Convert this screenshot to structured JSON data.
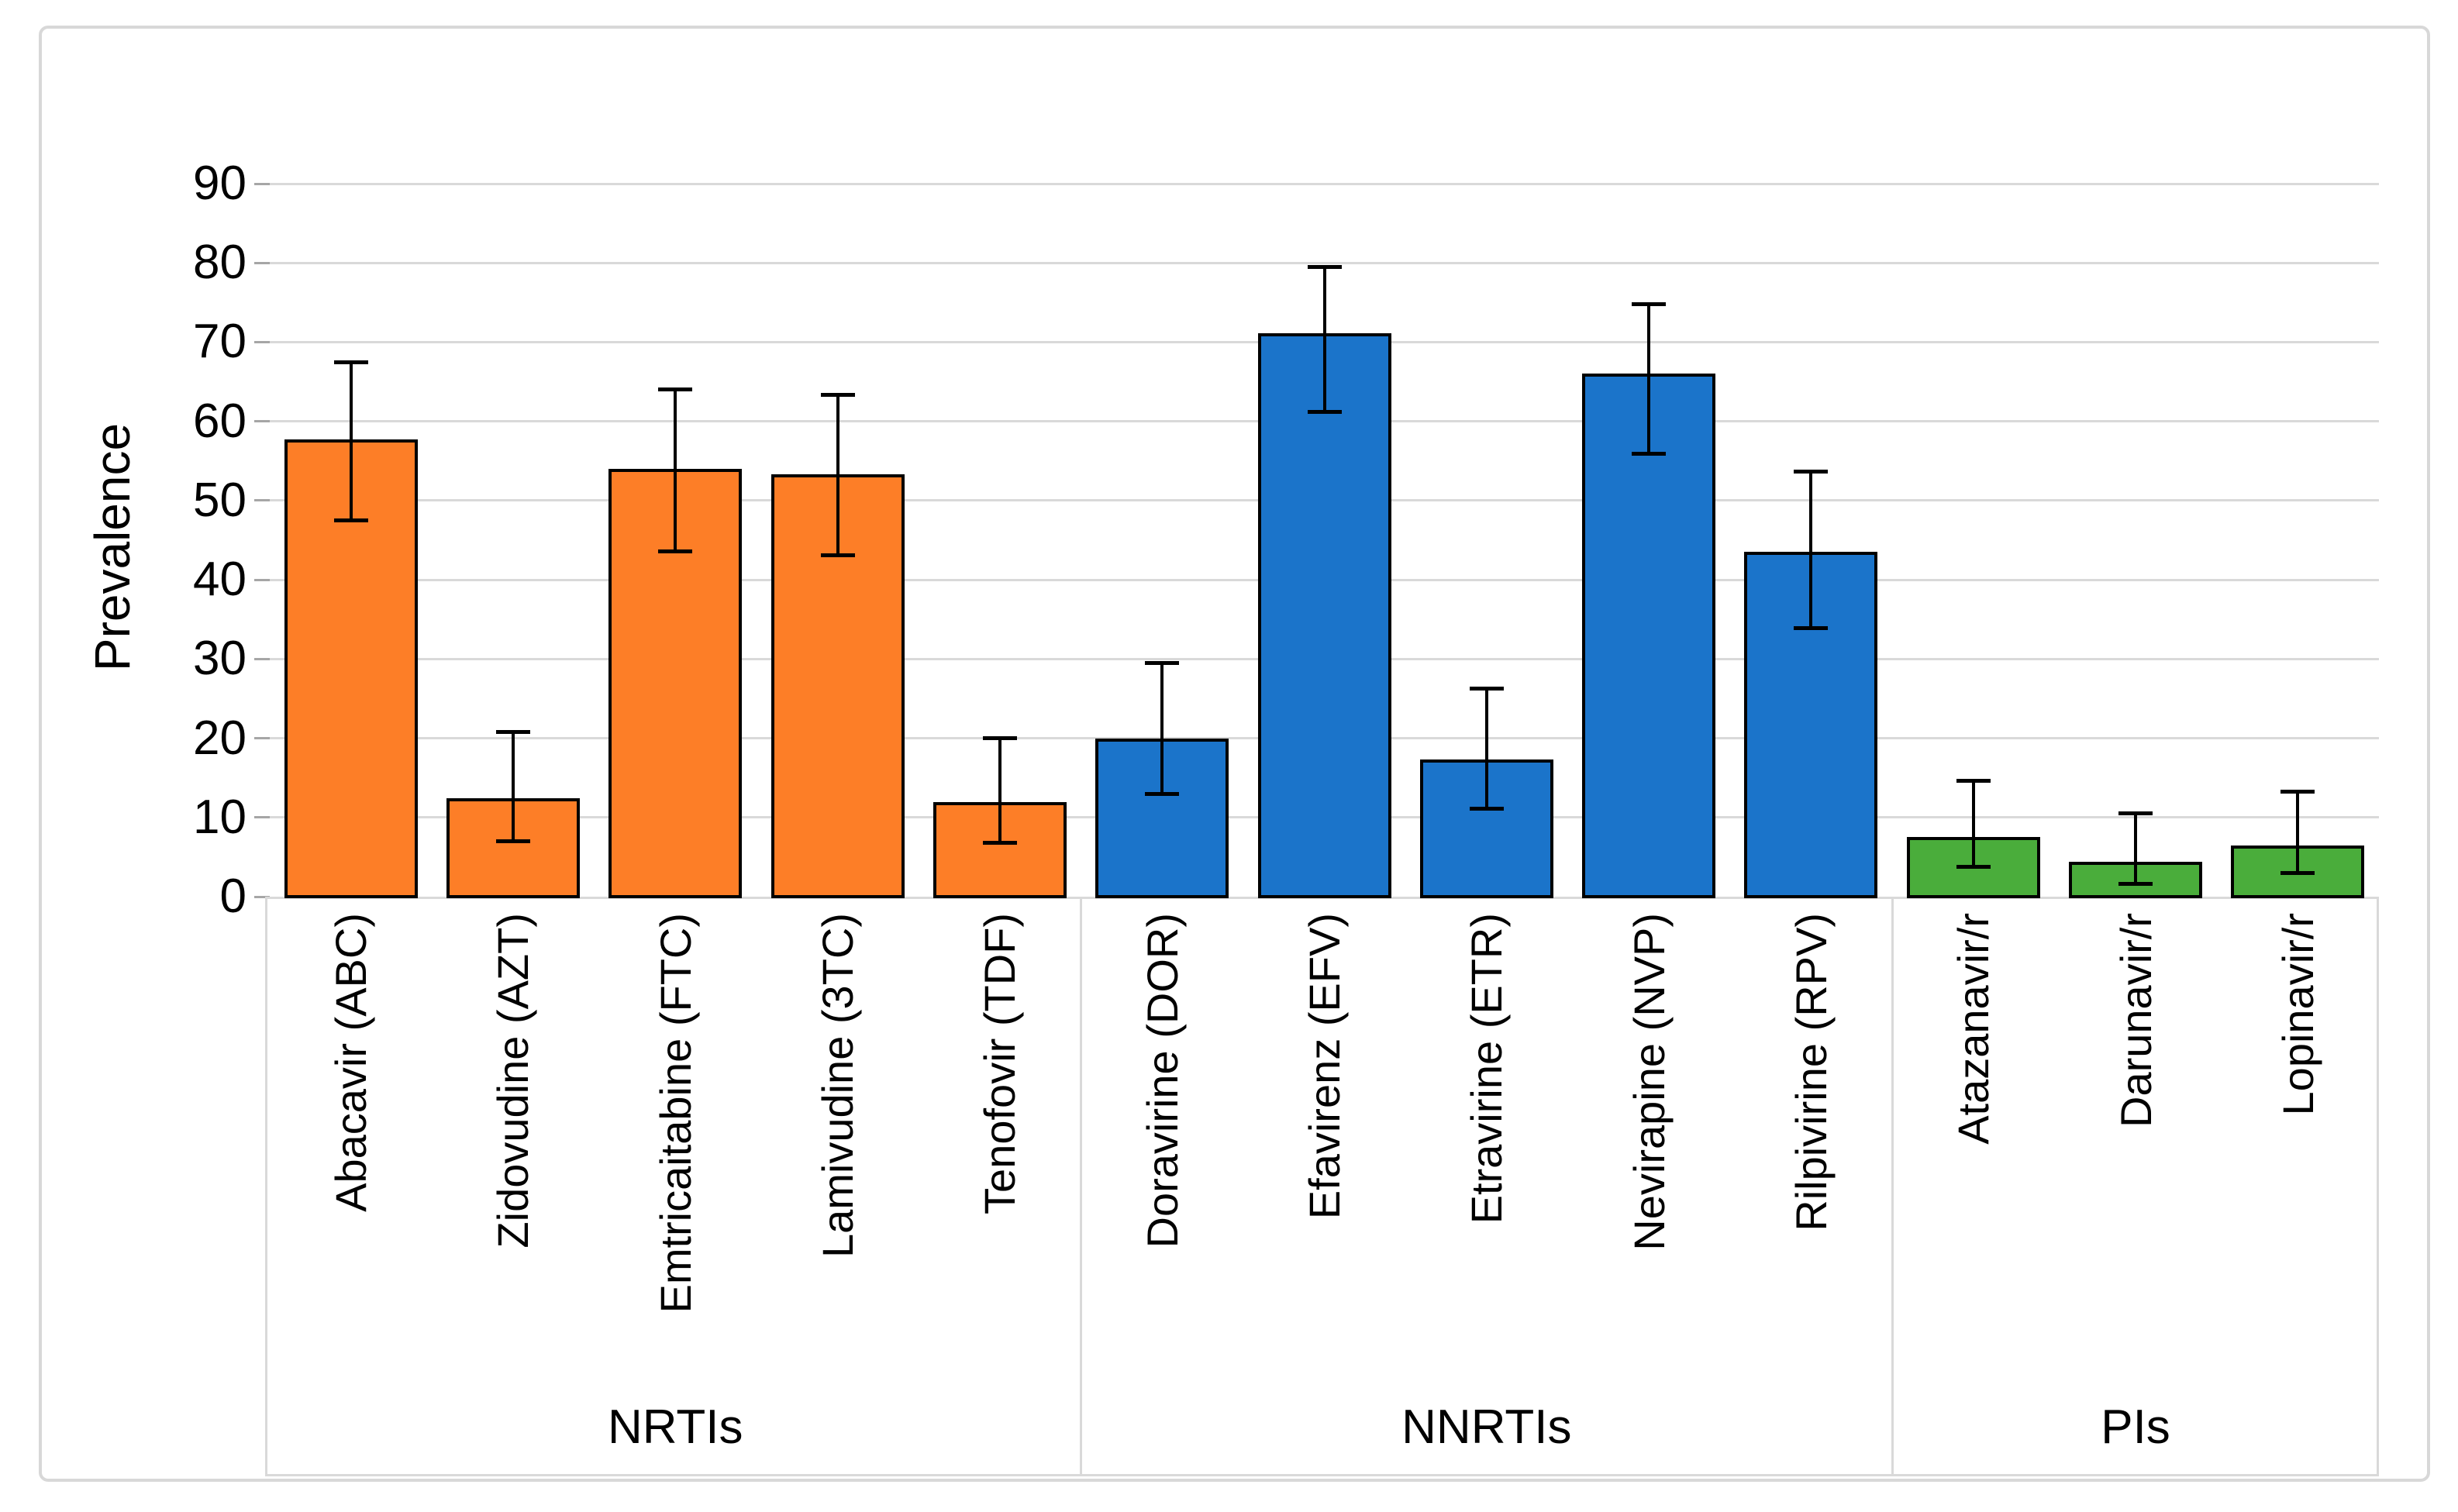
{
  "figure": {
    "background": "#ffffff",
    "frame_color": "#d8d8d8"
  },
  "chart_data": {
    "type": "bar",
    "title": "",
    "xlabel": "",
    "ylabel": "Prevalence",
    "ylim": [
      0,
      90
    ],
    "yticks": [
      0,
      10,
      20,
      30,
      40,
      50,
      60,
      70,
      80,
      90
    ],
    "grid": true,
    "legend": "none",
    "error_bars": true,
    "style": {
      "gridline_color": "#d9d9d9",
      "tick_color": "#a6a6a6",
      "bar_outline_color": "#000000",
      "error_bar_color": "#000000",
      "text_color": "#000000"
    },
    "groups": [
      {
        "label": "NRTIs",
        "color": "#fd7e27",
        "bars": [
          {
            "label": "Abacavir (ABC)",
            "value": 57.7,
            "ci": [
              47.5,
              67.5
            ]
          },
          {
            "label": "Zidovudine (AZT)",
            "value": 12.4,
            "ci": [
              7.0,
              20.8
            ]
          },
          {
            "label": "Emtricaitabine (FTC)",
            "value": 54.0,
            "ci": [
              43.6,
              64.1
            ]
          },
          {
            "label": "Lamivudine (3TC)",
            "value": 53.3,
            "ci": [
              43.1,
              63.4
            ]
          },
          {
            "label": "Tenofovir (TDF)",
            "value": 11.9,
            "ci": [
              6.8,
              20.1
            ]
          }
        ]
      },
      {
        "label": "NNRTIs",
        "color": "#1b74ca",
        "bars": [
          {
            "label": "Doravirine (DOR)",
            "value": 20.0,
            "ci": [
              13.0,
              29.5
            ]
          },
          {
            "label": "Efavirenz (EFV)",
            "value": 71.1,
            "ci": [
              61.2,
              79.5
            ]
          },
          {
            "label": "Etravirine (ETR)",
            "value": 17.3,
            "ci": [
              11.2,
              26.3
            ]
          },
          {
            "label": "Nevirapine (NVP)",
            "value": 66.0,
            "ci": [
              56.0,
              74.8
            ]
          },
          {
            "label": "Rilpivirine (RPV)",
            "value": 43.5,
            "ci": [
              33.9,
              53.7
            ]
          }
        ]
      },
      {
        "label": "PIs",
        "color": "#4aad3b",
        "bars": [
          {
            "label": "Atazanavir/r",
            "value": 7.5,
            "ci": [
              3.8,
              14.7
            ]
          },
          {
            "label": "Darunavir/r",
            "value": 4.4,
            "ci": [
              1.7,
              10.6
            ]
          },
          {
            "label": "Lopinavir/r",
            "value": 6.5,
            "ci": [
              3.0,
              13.3
            ]
          }
        ]
      }
    ]
  }
}
